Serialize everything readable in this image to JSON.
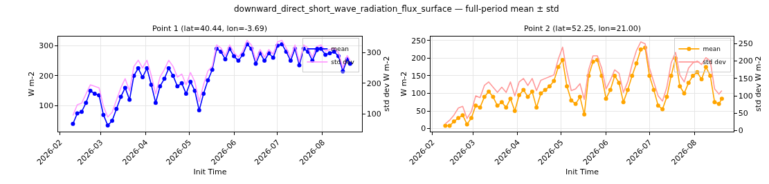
{
  "chart_data": [
    {
      "type": "line",
      "title": "Point 1 (lat=40.44, lon=-3.69)",
      "annotations": [
        "downward_direct_short_wave_radiation_flux_surface — full-period mean ± std"
      ],
      "xlabel": "Init Time",
      "ylabel": "W m-2",
      "y2label": "std dev W m-2",
      "x": [
        "2026-02-10",
        "2026-02-13",
        "2026-02-16",
        "2026-02-19",
        "2026-02-22",
        "2026-02-25",
        "2026-02-28",
        "2026-03-03",
        "2026-03-06",
        "2026-03-09",
        "2026-03-12",
        "2026-03-15",
        "2026-03-18",
        "2026-03-21",
        "2026-03-24",
        "2026-03-27",
        "2026-03-30",
        "2026-04-02",
        "2026-04-05",
        "2026-04-08",
        "2026-04-11",
        "2026-04-14",
        "2026-04-17",
        "2026-04-20",
        "2026-04-23",
        "2026-04-26",
        "2026-04-29",
        "2026-05-02",
        "2026-05-05",
        "2026-05-08",
        "2026-05-11",
        "2026-05-14",
        "2026-05-17",
        "2026-05-20",
        "2026-05-23",
        "2026-05-26",
        "2026-05-29",
        "2026-06-01",
        "2026-06-04",
        "2026-06-07",
        "2026-06-10",
        "2026-06-13",
        "2026-06-16",
        "2026-06-19",
        "2026-06-22",
        "2026-06-25",
        "2026-06-28",
        "2026-07-01",
        "2026-07-04",
        "2026-07-07",
        "2026-07-10",
        "2026-07-13",
        "2026-07-16",
        "2026-07-19",
        "2026-07-22",
        "2026-07-25",
        "2026-07-28",
        "2026-07-31",
        "2026-08-03",
        "2026-08-06",
        "2026-08-09",
        "2026-08-12",
        "2026-08-15",
        "2026-08-18",
        "2026-08-20"
      ],
      "series": [
        {
          "name": "mean",
          "color": "#0000ff",
          "marker": "circle",
          "values": [
            40,
            75,
            80,
            110,
            150,
            140,
            135,
            70,
            35,
            50,
            90,
            130,
            160,
            120,
            200,
            225,
            195,
            225,
            170,
            110,
            165,
            190,
            225,
            200,
            165,
            175,
            140,
            180,
            150,
            85,
            140,
            185,
            220,
            290,
            280,
            255,
            290,
            265,
            250,
            270,
            305,
            290,
            240,
            275,
            250,
            275,
            260,
            300,
            305,
            280,
            250,
            290,
            235,
            290,
            280,
            250,
            285,
            290,
            270,
            275,
            280,
            265,
            215,
            255,
            240
          ]
        },
        {
          "name": "std dev",
          "color": "#ff99ff",
          "marker": "none",
          "axis": "y2",
          "values": [
            95,
            130,
            135,
            165,
            195,
            190,
            185,
            125,
            90,
            105,
            145,
            185,
            215,
            175,
            255,
            275,
            250,
            275,
            225,
            165,
            220,
            245,
            275,
            255,
            220,
            230,
            195,
            235,
            205,
            140,
            195,
            240,
            255,
            325,
            315,
            290,
            325,
            300,
            285,
            305,
            340,
            325,
            275,
            310,
            285,
            310,
            295,
            335,
            340,
            315,
            285,
            325,
            270,
            325,
            315,
            285,
            320,
            325,
            305,
            310,
            315,
            300,
            250,
            290,
            275
          ]
        }
      ],
      "xlim": [
        "2026-01-31",
        "2026-08-28"
      ],
      "xticks": [
        {
          "value": "2026-02-01",
          "label": "2026-02"
        },
        {
          "value": "2026-03-01",
          "label": "2026-03"
        },
        {
          "value": "2026-04-01",
          "label": "2026-04"
        },
        {
          "value": "2026-05-01",
          "label": "2026-05"
        },
        {
          "value": "2026-06-01",
          "label": "2026-06"
        },
        {
          "value": "2026-07-01",
          "label": "2026-07"
        },
        {
          "value": "2026-08-01",
          "label": "2026-08"
        }
      ],
      "ylim": [
        15,
        331
      ],
      "yticks": [
        100,
        200,
        300
      ],
      "y2lim": [
        43,
        353
      ],
      "y2ticks": [
        100,
        200,
        300
      ],
      "grid": true,
      "legend": "top right",
      "line_style": "solid"
    },
    {
      "type": "line",
      "title": "Point 2 (lat=52.25, lon=21.00)",
      "xlabel": "Init Time",
      "ylabel": "W m-2",
      "y2label": "std dev W m-2",
      "x": [
        "2026-02-10",
        "2026-02-13",
        "2026-02-16",
        "2026-02-19",
        "2026-02-22",
        "2026-02-25",
        "2026-02-28",
        "2026-03-03",
        "2026-03-06",
        "2026-03-09",
        "2026-03-12",
        "2026-03-15",
        "2026-03-18",
        "2026-03-21",
        "2026-03-24",
        "2026-03-27",
        "2026-03-30",
        "2026-04-02",
        "2026-04-05",
        "2026-04-08",
        "2026-04-11",
        "2026-04-14",
        "2026-04-17",
        "2026-04-20",
        "2026-04-23",
        "2026-04-26",
        "2026-04-29",
        "2026-05-02",
        "2026-05-05",
        "2026-05-08",
        "2026-05-11",
        "2026-05-14",
        "2026-05-17",
        "2026-05-20",
        "2026-05-23",
        "2026-05-26",
        "2026-05-29",
        "2026-06-01",
        "2026-06-04",
        "2026-06-07",
        "2026-06-10",
        "2026-06-13",
        "2026-06-16",
        "2026-06-19",
        "2026-06-22",
        "2026-06-25",
        "2026-06-28",
        "2026-07-01",
        "2026-07-04",
        "2026-07-07",
        "2026-07-10",
        "2026-07-13",
        "2026-07-16",
        "2026-07-19",
        "2026-07-22",
        "2026-07-25",
        "2026-07-28",
        "2026-07-31",
        "2026-08-03",
        "2026-08-06",
        "2026-08-09",
        "2026-08-12",
        "2026-08-15",
        "2026-08-18",
        "2026-08-20"
      ],
      "series": [
        {
          "name": "mean",
          "color": "#ffa500",
          "marker": "circle",
          "values": [
            8,
            8,
            20,
            30,
            38,
            12,
            30,
            65,
            60,
            90,
            105,
            90,
            65,
            75,
            60,
            85,
            50,
            95,
            110,
            90,
            105,
            60,
            100,
            110,
            120,
            135,
            175,
            195,
            120,
            80,
            70,
            90,
            40,
            150,
            190,
            195,
            150,
            85,
            110,
            150,
            130,
            75,
            110,
            150,
            185,
            225,
            230,
            150,
            110,
            65,
            55,
            90,
            150,
            200,
            120,
            100,
            130,
            150,
            160,
            140,
            175,
            150,
            75,
            70,
            85
          ]
        },
        {
          "name": "std dev",
          "color": "#ff9999",
          "marker": "none",
          "axis": "y2",
          "values": [
            20,
            30,
            45,
            65,
            70,
            35,
            55,
            100,
            95,
            130,
            140,
            125,
            110,
            125,
            110,
            140,
            100,
            140,
            150,
            130,
            150,
            115,
            145,
            150,
            155,
            160,
            205,
            240,
            170,
            115,
            120,
            135,
            90,
            175,
            215,
            215,
            180,
            120,
            145,
            175,
            165,
            110,
            140,
            190,
            230,
            255,
            250,
            180,
            140,
            100,
            85,
            125,
            195,
            225,
            160,
            140,
            180,
            195,
            200,
            190,
            210,
            200,
            120,
            105,
            115
          ]
        }
      ],
      "xlim": [
        "2026-01-31",
        "2026-08-28"
      ],
      "xticks": [
        {
          "value": "2026-02-01",
          "label": "2026-02"
        },
        {
          "value": "2026-03-01",
          "label": "2026-03"
        },
        {
          "value": "2026-04-01",
          "label": "2026-04"
        },
        {
          "value": "2026-05-01",
          "label": "2026-05"
        },
        {
          "value": "2026-06-01",
          "label": "2026-06"
        },
        {
          "value": "2026-07-01",
          "label": "2026-07"
        },
        {
          "value": "2026-08-01",
          "label": "2026-08"
        }
      ],
      "ylim": [
        -8,
        262
      ],
      "yticks": [
        0,
        50,
        100,
        150,
        200,
        250
      ],
      "y2lim": [
        -2,
        271
      ],
      "y2ticks": [
        0,
        50,
        100,
        150,
        200,
        250
      ],
      "grid": true,
      "legend": "top right",
      "line_style": "solid"
    }
  ]
}
